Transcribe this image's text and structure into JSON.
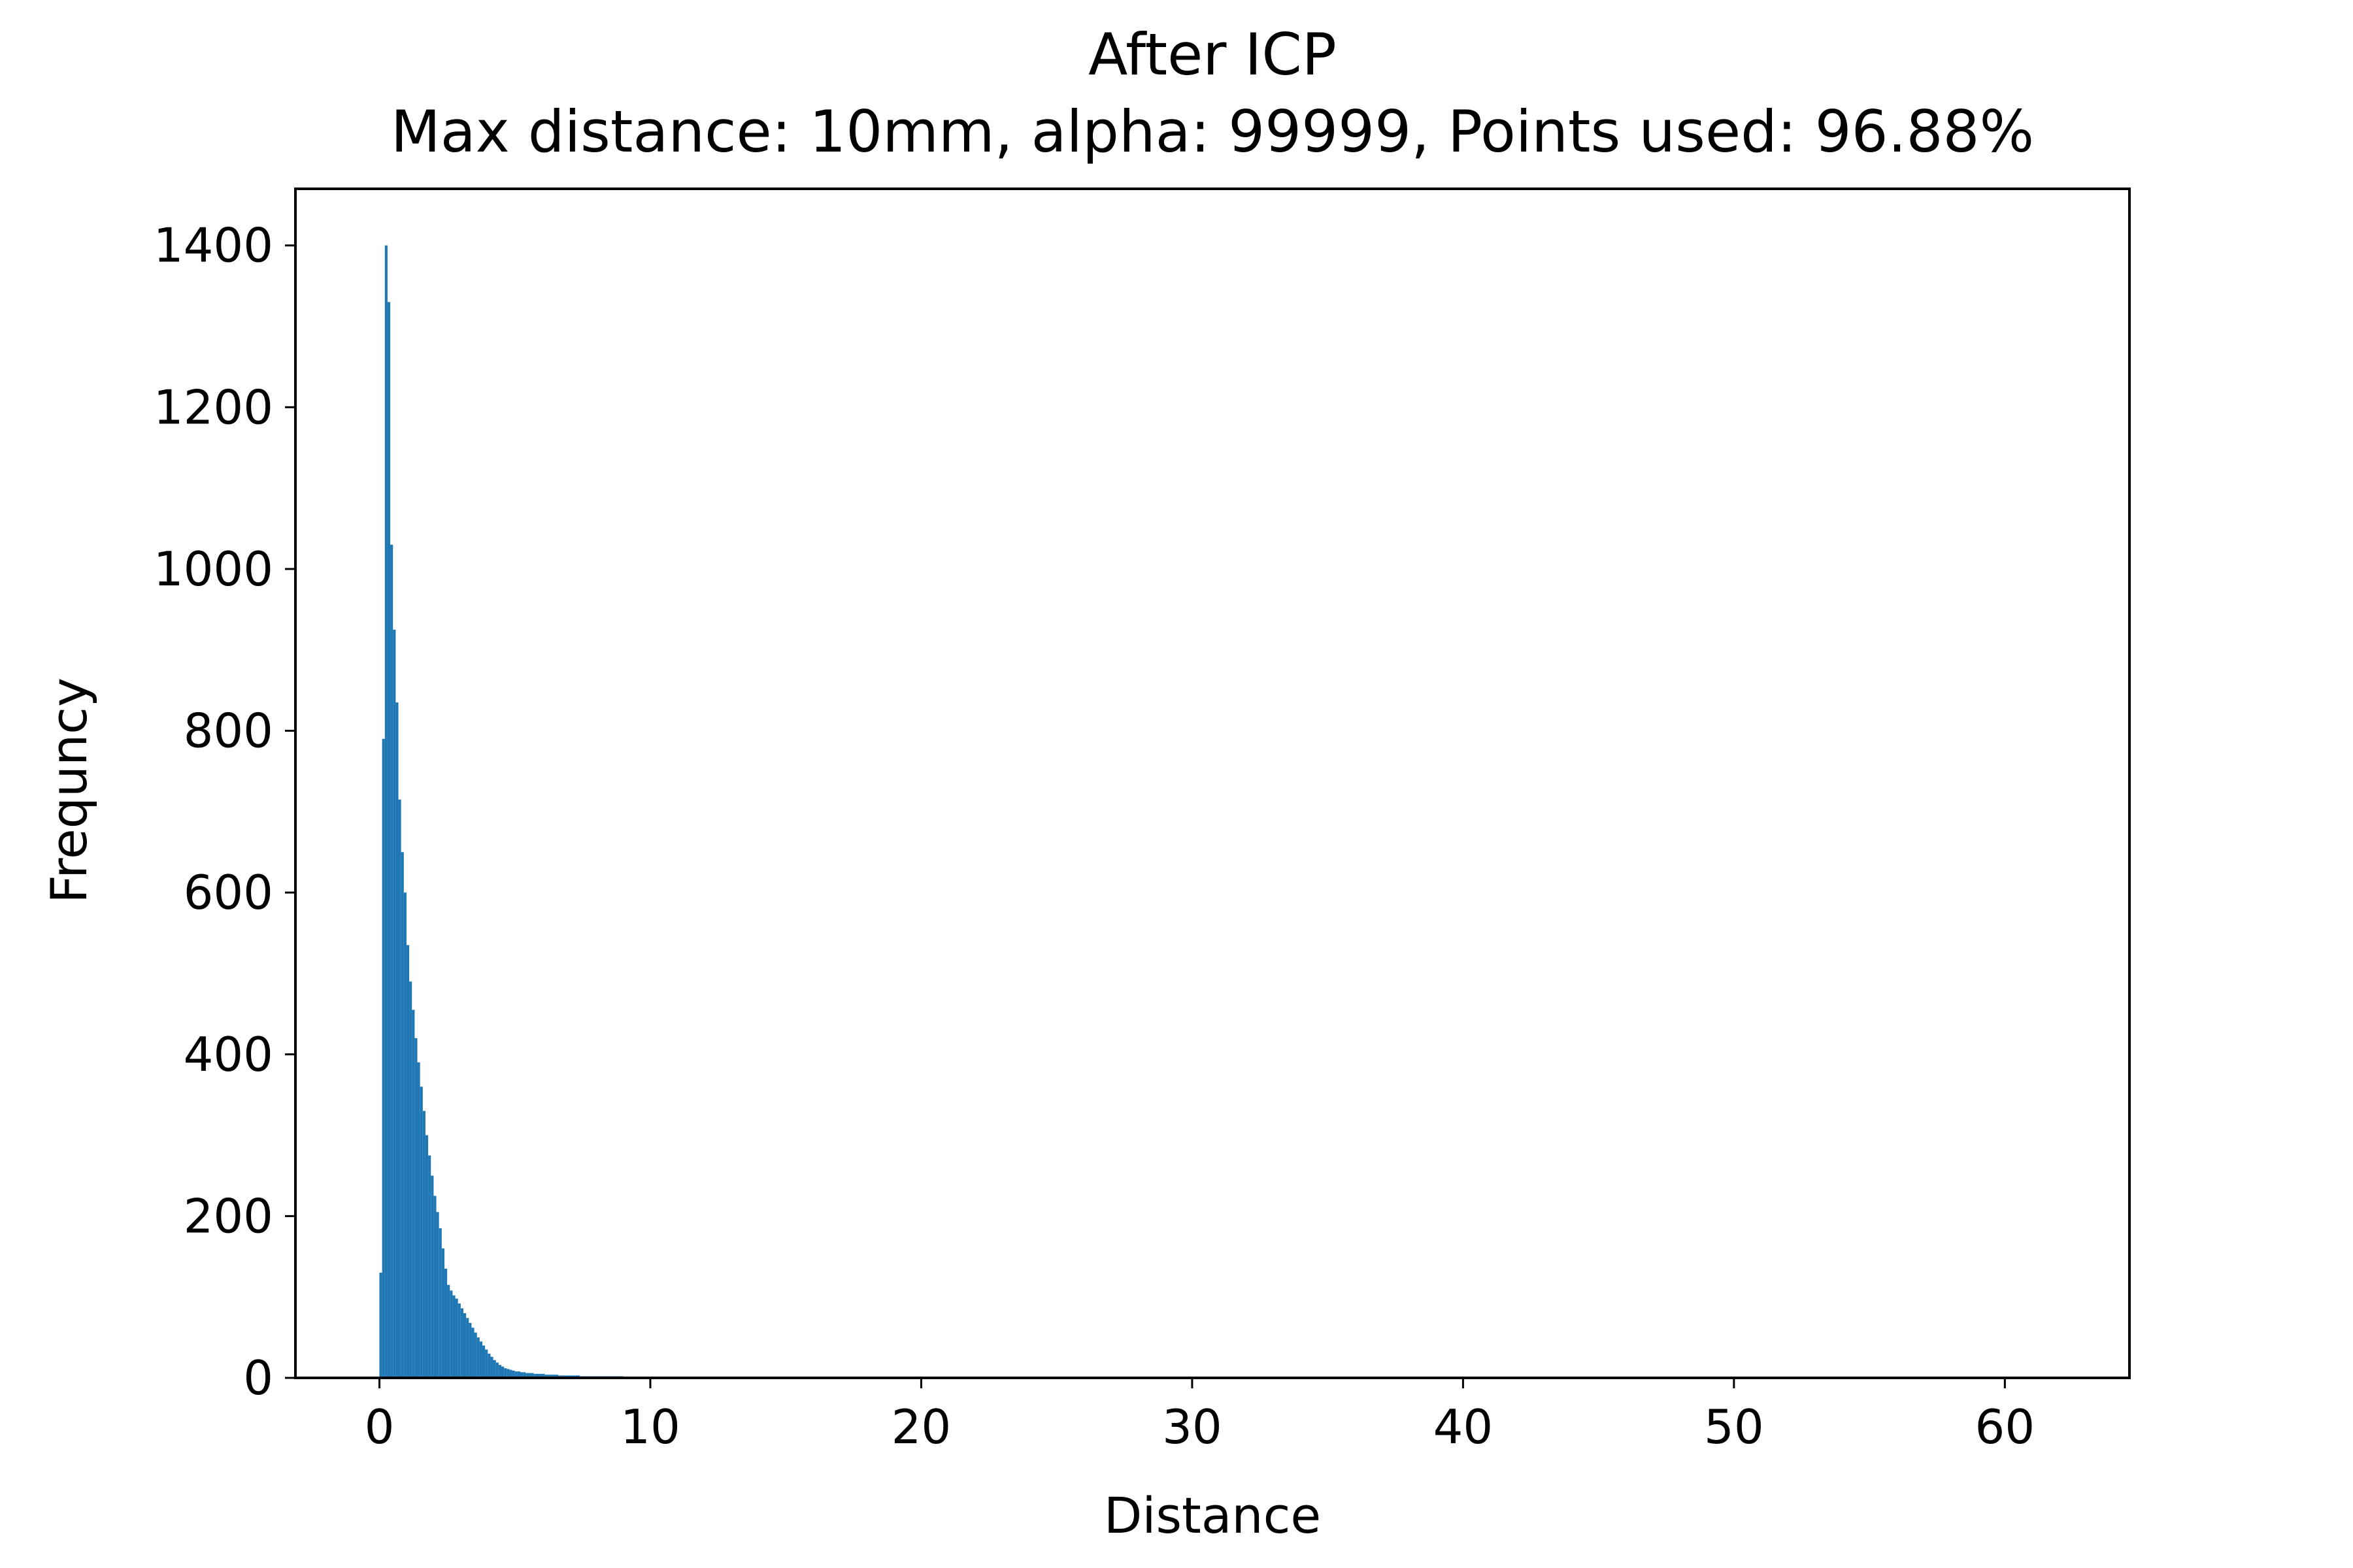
{
  "chart_data": {
    "type": "bar",
    "title": "After ICP",
    "subtitle": "Max distance: 10mm, alpha: 99999, Points used: 96.88%",
    "xlabel": "Distance",
    "ylabel": "Frequncy",
    "xlim": [
      -3.1,
      64.6
    ],
    "ylim": [
      0,
      1470
    ],
    "xticks": [
      0,
      10,
      20,
      30,
      40,
      50,
      60
    ],
    "yticks": [
      0,
      200,
      400,
      600,
      800,
      1000,
      1200,
      1400
    ],
    "grid": false,
    "legend": "none",
    "bin_width": 0.1,
    "bin_start": 0.0,
    "bar_color": "#1f77b4",
    "values": [
      130,
      790,
      1400,
      1330,
      1030,
      925,
      835,
      715,
      650,
      600,
      535,
      490,
      455,
      420,
      390,
      360,
      330,
      300,
      275,
      250,
      225,
      205,
      185,
      160,
      135,
      115,
      108,
      102,
      98,
      92,
      86,
      80,
      74,
      68,
      62,
      56,
      50,
      45,
      40,
      35,
      30,
      26,
      22,
      19,
      16,
      14,
      12,
      11,
      10,
      9,
      8,
      8,
      7,
      7,
      6,
      6,
      6,
      5,
      5,
      5,
      5,
      4,
      4,
      4,
      4,
      4,
      3,
      3,
      3,
      3,
      3,
      3,
      3,
      3,
      2,
      2,
      2,
      2,
      2,
      2,
      2,
      2,
      2,
      2,
      2,
      2,
      2,
      2,
      2,
      2,
      1,
      1,
      1,
      1,
      1,
      1,
      1,
      1,
      1,
      1,
      1,
      1,
      1,
      1,
      1,
      1,
      1,
      1,
      1,
      1,
      1,
      1,
      1,
      1,
      1
    ]
  }
}
